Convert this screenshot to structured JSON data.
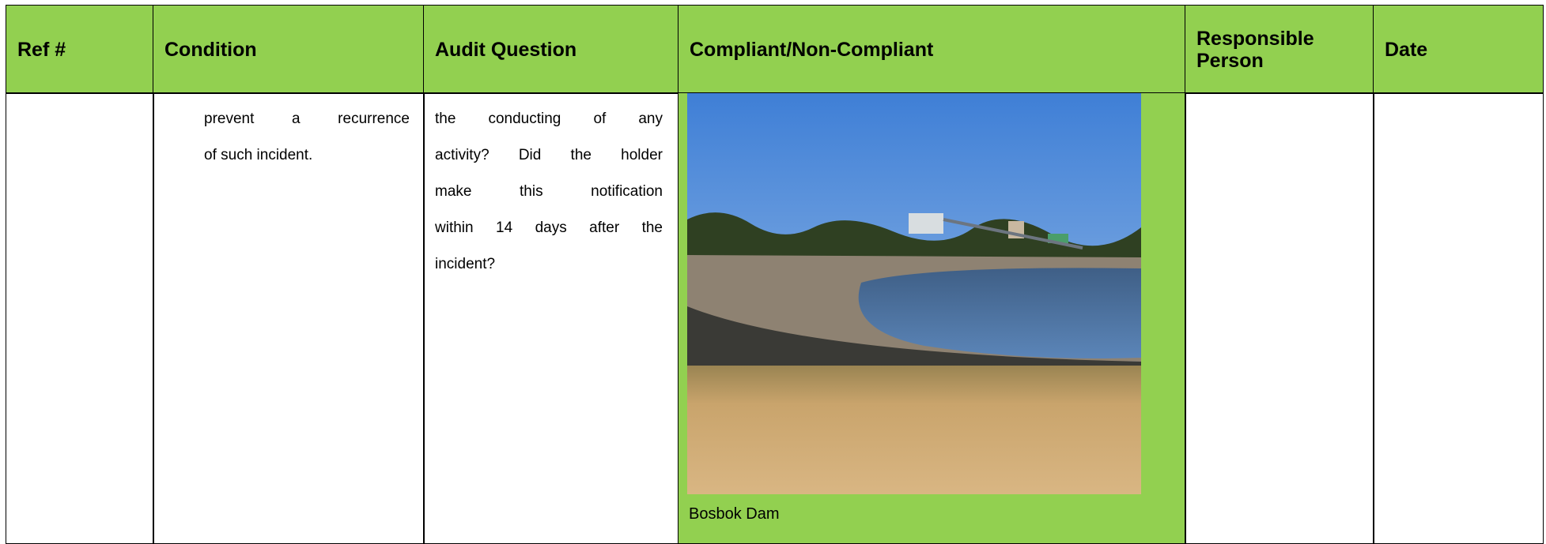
{
  "table": {
    "headers": [
      "Ref #",
      "Condition",
      "Audit Question",
      "Compliant/Non-Compliant",
      "Responsible Person",
      "Date"
    ],
    "row": {
      "condition": [
        "prevent a recurrence",
        "of such incident."
      ],
      "audit_question": [
        "the conducting of any",
        "activity? Did the holder",
        "make this notification",
        "within 14 days after the",
        "incident?"
      ],
      "image_caption": "Bosbok Dam"
    }
  }
}
